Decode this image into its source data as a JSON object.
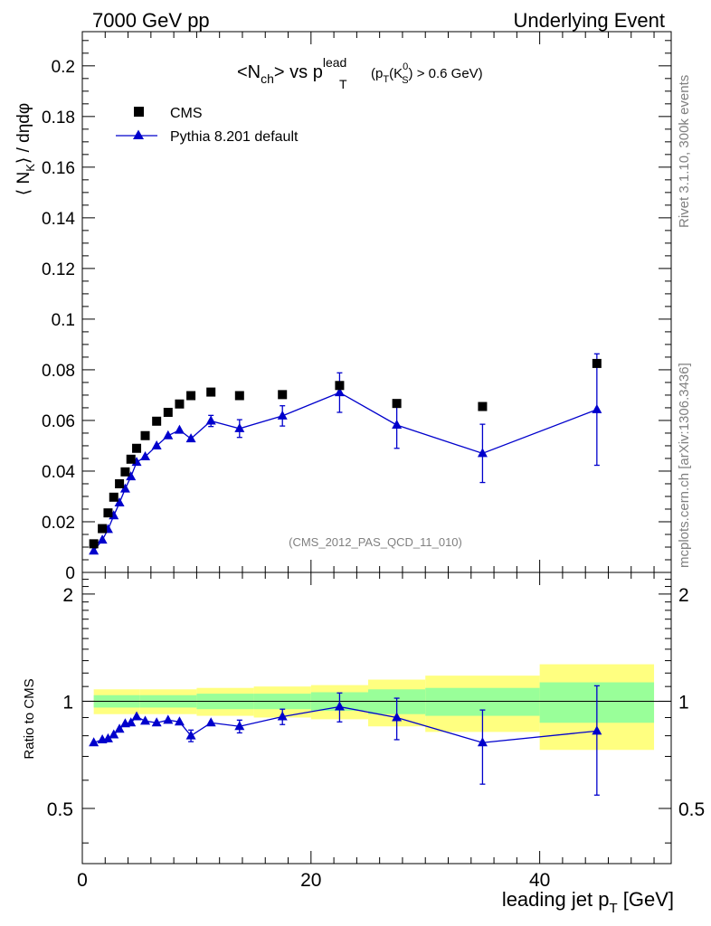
{
  "header": {
    "left": "7000 GeV pp",
    "right": "Underlying Event"
  },
  "side": {
    "rivet": "Rivet 3.1.10,  300k events",
    "mcplots": "mcplots.cern.ch [arXiv:1306.3436]"
  },
  "chart_data": [
    {
      "type": "scatter",
      "panel": "main",
      "title_parts": {
        "nch": "<N",
        "nch_sub": "ch",
        "vs": "> vs p",
        "p_sup": "lead",
        "p_sub": "T",
        "cut_open": "(p",
        "cut_sub": "T",
        "cut_k": "(K",
        "cut_k_sup": "0",
        "cut_k_sub": "S",
        "cut_close": ") > 0.6 GeV)"
      },
      "ylabel_parts": {
        "open": "⟨ N",
        "sub": "K",
        "close": "⟩ / dηdφ"
      },
      "watermark": "(CMS_2012_PAS_QCD_11_010)",
      "ylim": [
        0,
        0.2135
      ],
      "xlim": [
        0,
        51.5
      ],
      "yticks": [
        0,
        0.02,
        0.04,
        0.06,
        0.08,
        0.1,
        0.12,
        0.14,
        0.16,
        0.18,
        0.2
      ],
      "ytick_labels": [
        "0",
        "0.02",
        "0.04",
        "0.06",
        "0.08",
        "0.1",
        "0.12",
        "0.14",
        "0.16",
        "0.18",
        "0.2"
      ],
      "legend": {
        "position": "top-left",
        "cms": "CMS",
        "pythia": "Pythia 8.201 default"
      },
      "series": [
        {
          "name": "CMS",
          "color": "#000000",
          "marker": "square",
          "x": [
            1.0,
            1.75,
            2.25,
            2.75,
            3.25,
            3.75,
            4.25,
            4.75,
            5.5,
            6.5,
            7.5,
            8.5,
            9.5,
            11.25,
            13.75,
            17.5,
            22.5,
            27.5,
            35.0,
            45.0
          ],
          "y": [
            0.0113,
            0.0173,
            0.0235,
            0.0297,
            0.035,
            0.0397,
            0.0447,
            0.049,
            0.054,
            0.0597,
            0.0632,
            0.0665,
            0.0698,
            0.0712,
            0.0698,
            0.0702,
            0.0738,
            0.0667,
            0.0655,
            0.0825
          ]
        },
        {
          "name": "Pythia 8.201 default",
          "color": "#0000cc",
          "marker": "triangle",
          "x": [
            1.0,
            1.75,
            2.25,
            2.75,
            3.25,
            3.75,
            4.25,
            4.75,
            5.5,
            6.5,
            7.5,
            8.5,
            9.5,
            11.25,
            13.75,
            17.5,
            22.5,
            27.5,
            35.0,
            45.0
          ],
          "y": [
            0.0085,
            0.0128,
            0.017,
            0.0224,
            0.0275,
            0.033,
            0.0378,
            0.0435,
            0.0457,
            0.05,
            0.054,
            0.0562,
            0.0528,
            0.0598,
            0.0568,
            0.0618,
            0.071,
            0.0582,
            0.047,
            0.0643
          ],
          "yerr": [
            0.0008,
            0.0008,
            0.0008,
            0.0009,
            0.001,
            0.001,
            0.0011,
            0.0012,
            0.0012,
            0.0013,
            0.0014,
            0.0016,
            0.0018,
            0.0022,
            0.0035,
            0.004,
            0.0078,
            0.0092,
            0.0115,
            0.022
          ]
        }
      ]
    },
    {
      "type": "scatter",
      "panel": "ratio",
      "ylabel": "Ratio to CMS",
      "xlabel_parts": {
        "main": "leading jet p",
        "sub": "T",
        "unit": " [GeV]"
      },
      "ylim": [
        0.35,
        2.3
      ],
      "xlim": [
        0,
        51.5
      ],
      "xticks": [
        0,
        20,
        40
      ],
      "xtick_labels": [
        "0",
        "20",
        "40"
      ],
      "yticks": [
        0.5,
        1,
        2
      ],
      "ytick_labels": [
        "0.5",
        "1",
        "2"
      ],
      "bands": {
        "edges": [
          1,
          5,
          10,
          15,
          20,
          25,
          30,
          40,
          50
        ],
        "yellow_lo": [
          0.92,
          0.92,
          0.91,
          0.9,
          0.89,
          0.85,
          0.82,
          0.73
        ],
        "yellow_hi": [
          1.08,
          1.08,
          1.09,
          1.1,
          1.11,
          1.15,
          1.18,
          1.27
        ],
        "green_lo": [
          0.96,
          0.96,
          0.95,
          0.95,
          0.94,
          0.92,
          0.91,
          0.87
        ],
        "green_hi": [
          1.04,
          1.04,
          1.05,
          1.05,
          1.06,
          1.08,
          1.09,
          1.13
        ],
        "yellow_color": "#ffff80",
        "green_color": "#99ff99"
      },
      "series": [
        {
          "name": "Pythia 8.201 default",
          "color": "#0000cc",
          "x": [
            1.0,
            1.75,
            2.25,
            2.75,
            3.25,
            3.75,
            4.25,
            4.75,
            5.5,
            6.5,
            7.5,
            8.5,
            9.5,
            11.25,
            13.75,
            17.5,
            22.5,
            27.5,
            35.0,
            45.0
          ],
          "y": [
            0.765,
            0.78,
            0.785,
            0.805,
            0.835,
            0.865,
            0.87,
            0.905,
            0.88,
            0.87,
            0.885,
            0.875,
            0.8,
            0.87,
            0.85,
            0.905,
            0.965,
            0.9,
            0.765,
            0.825
          ],
          "yerr": [
            0.01,
            0.01,
            0.01,
            0.015,
            0.015,
            0.015,
            0.015,
            0.015,
            0.015,
            0.015,
            0.02,
            0.025,
            0.03,
            0.03,
            0.035,
            0.045,
            0.09,
            0.12,
            0.18,
            0.28
          ]
        }
      ]
    }
  ]
}
